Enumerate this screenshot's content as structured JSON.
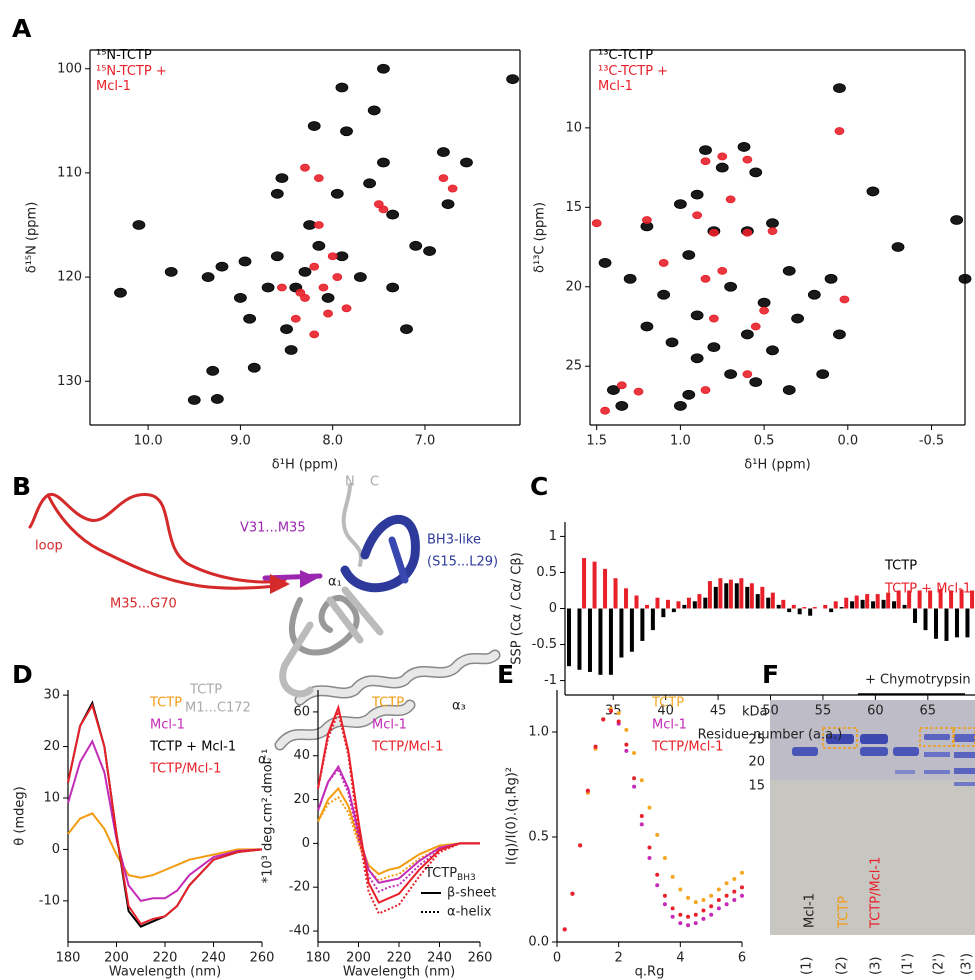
{
  "panel_labels": [
    "A",
    "B",
    "C",
    "D",
    "E",
    "F"
  ],
  "structure": {
    "loop": "loop",
    "v31": "V31...M35",
    "bh3": "BH3-like",
    "bh3_range": "(S15...L29)",
    "m35": "M35...G70",
    "tctp": "TCTP",
    "tctp_range": "M1...C172",
    "n": "N",
    "c": "C",
    "a1": "α₁",
    "a2": "α₂",
    "a3": "α₃"
  },
  "gel": {
    "treatment": "+ Chymotrypsin",
    "unit": "kDa",
    "markers": [
      "25",
      "20",
      "15"
    ],
    "samples": [
      "Mcl-1",
      "TCTP",
      "TCTP/Mcl-1"
    ],
    "lanes": [
      "(1)",
      "(2)",
      "(3)",
      "(1')",
      "(2')",
      "(3')"
    ]
  },
  "chart_data": [
    {
      "type": "scatter",
      "xlabel": "δ¹H (ppm)",
      "ylabel": "δ¹⁵N (ppm)",
      "xlim": [
        10.63,
        5.97
      ],
      "ylim": [
        134.2,
        98.2
      ],
      "xticks": [
        {
          "value": 10,
          "label": "10.0"
        },
        {
          "value": 9,
          "label": "9.0"
        },
        {
          "value": 8,
          "label": "8.0"
        },
        {
          "value": 7,
          "label": "7.0"
        }
      ],
      "yticks": [
        100,
        110,
        120,
        130
      ],
      "series": [
        {
          "name": "¹⁵N-TCTP",
          "color": "#000000",
          "x": [
            10.3,
            10.1,
            9.75,
            9.5,
            9.3,
            9.25,
            9.35,
            9.2,
            9.0,
            8.95,
            8.9,
            8.85,
            8.7,
            8.6,
            8.5,
            8.45,
            8.4,
            8.3,
            8.25,
            8.15,
            8.05,
            7.95,
            7.9,
            7.7,
            7.6,
            7.55,
            7.45,
            7.45,
            7.35,
            7.2,
            7.1,
            6.95,
            6.8,
            6.75,
            6.55,
            6.05,
            8.2,
            7.85,
            8.6,
            8.55,
            7.35,
            7.9
          ],
          "values": [
            121.5,
            115,
            119.5,
            131.8,
            129,
            131.7,
            120,
            119,
            122,
            118.5,
            124,
            128.7,
            121,
            118,
            125,
            127,
            121,
            119.5,
            115,
            117,
            122,
            112,
            118,
            120,
            111,
            104,
            100,
            109,
            121,
            125,
            117,
            117.5,
            108,
            113,
            109,
            101,
            105.5,
            106,
            112,
            110.5,
            114,
            101.8
          ]
        },
        {
          "name": "¹⁵N-TCTP + Mcl-1",
          "color": "#e8202a",
          "x": [
            8.3,
            8.15,
            8.2,
            8.1,
            8.05,
            8.15,
            7.95,
            8.3,
            8.0,
            8.4,
            7.85,
            7.5,
            7.45,
            6.8,
            6.7,
            8.35,
            8.2,
            8.55
          ],
          "values": [
            109.5,
            110.5,
            119,
            121,
            123.5,
            115,
            120,
            122,
            118,
            124,
            123,
            113,
            113.5,
            110.5,
            111.5,
            121.5,
            125.5,
            121
          ]
        }
      ]
    },
    {
      "type": "scatter",
      "xlabel": "δ¹H (ppm)",
      "ylabel": "δ¹³C (ppm)",
      "xlim": [
        1.54,
        -0.7
      ],
      "ylim": [
        28.7,
        5.1
      ],
      "xticks": [
        1.5,
        {
          "value": 1,
          "label": "1.0"
        },
        0.5,
        {
          "value": 0,
          "label": "0.0"
        },
        -0.5
      ],
      "yticks": [
        10,
        15,
        20,
        25
      ],
      "series": [
        {
          "name": "¹³C-TCTP",
          "color": "#000000",
          "x": [
            0.05,
            0.62,
            0.85,
            0.75,
            0.9,
            1.0,
            0.55,
            -0.15,
            -0.3,
            -0.65,
            -0.7,
            1.45,
            1.2,
            1.3,
            1.1,
            0.95,
            0.8,
            0.6,
            0.45,
            0.7,
            0.5,
            0.35,
            0.1,
            0.2,
            0.05,
            0.3,
            0.9,
            0.8,
            1.05,
            1.2,
            0.6,
            0.45,
            0.7,
            0.9,
            0.55,
            0.15,
            0.35,
            1.4,
            1.35,
            1.0,
            0.95
          ],
          "values": [
            7.5,
            11.2,
            11.4,
            12.5,
            14.2,
            14.8,
            12.8,
            14,
            17.5,
            15.8,
            19.5,
            18.5,
            16.2,
            19.5,
            20.5,
            18,
            16.5,
            16.5,
            16,
            20,
            21,
            19,
            19.5,
            20.5,
            23,
            22,
            21.8,
            23.8,
            23.5,
            22.5,
            23,
            24,
            25.5,
            24.5,
            26,
            25.5,
            26.5,
            26.5,
            27.5,
            27.5,
            26.8
          ]
        },
        {
          "name": "¹³C-TCTP + Mcl-1",
          "color": "#e8202a",
          "x": [
            0.85,
            0.75,
            0.6,
            0.7,
            0.9,
            0.45,
            0.6,
            0.8,
            1.1,
            1.2,
            0.85,
            0.5,
            0.55,
            0.75,
            0.8,
            0.6,
            1.35,
            1.25,
            0.85,
            0.02,
            0.05,
            1.5,
            1.45
          ],
          "values": [
            12.1,
            11.8,
            12,
            14.5,
            15.5,
            16.5,
            16.6,
            16.6,
            18.5,
            15.8,
            19.5,
            21.5,
            22.5,
            19,
            22,
            25.5,
            26.2,
            26.6,
            26.5,
            20.8,
            10.2,
            16,
            27.8
          ]
        }
      ]
    },
    {
      "type": "bar",
      "xlabel": "Residue number (a.a.)",
      "ylabel": "SSP (Cα / Cα/ Cβ)",
      "xlim": [
        30.4,
        69.5
      ],
      "ylim": [
        -1.2,
        1.2
      ],
      "xticks": [
        35,
        40,
        45,
        50,
        55,
        60,
        65
      ],
      "yticks": [
        1,
        0.5,
        0,
        -0.5,
        -1
      ],
      "x": [
        31,
        32,
        33,
        34,
        35,
        36,
        37,
        38,
        39,
        40,
        41,
        42,
        43,
        44,
        45,
        46,
        47,
        48,
        49,
        50,
        51,
        52,
        53,
        54,
        55,
        56,
        57,
        58,
        59,
        60,
        61,
        62,
        63,
        64,
        65,
        66,
        67,
        68,
        69
      ],
      "series": [
        {
          "name": "TCTP",
          "color": "#000000",
          "values": [
            -0.8,
            -0.85,
            -0.88,
            -0.92,
            -0.92,
            -0.68,
            -0.6,
            -0.45,
            -0.3,
            -0.12,
            -0.05,
            0.05,
            0.1,
            0.15,
            0.3,
            0.35,
            0.35,
            0.3,
            0.2,
            0.15,
            0.05,
            -0.05,
            -0.08,
            -0.1,
            null,
            -0.05,
            0.02,
            0.1,
            0.12,
            0.1,
            0.12,
            0.1,
            0.05,
            -0.2,
            -0.3,
            -0.42,
            -0.45,
            -0.4,
            -0.4
          ]
        },
        {
          "name": "TCTP + Mcl-1",
          "color": "#e8202a",
          "values": [
            null,
            0.7,
            0.65,
            0.55,
            0.42,
            0.28,
            0.18,
            0.05,
            0.15,
            0.12,
            0.1,
            0.15,
            0.2,
            0.38,
            0.42,
            0.4,
            0.42,
            0.35,
            0.3,
            0.22,
            0.12,
            0.05,
            0.02,
            0.02,
            0.05,
            0.1,
            0.15,
            0.18,
            0.2,
            0.2,
            0.22,
            0.25,
            0.25,
            0.25,
            0.25,
            0.27,
            0.25,
            0.26,
            0.25
          ]
        }
      ]
    },
    {
      "type": "line",
      "xlabel": "Wavelength (nm)",
      "ylabel": "θ (mdeg)",
      "xlim": [
        180,
        260
      ],
      "ylim": [
        -18,
        31
      ],
      "xticks": [
        180,
        200,
        220,
        240,
        260
      ],
      "yticks": [
        30,
        20,
        10,
        0,
        -10
      ],
      "x": [
        180,
        185,
        190,
        195,
        200,
        205,
        210,
        215,
        220,
        225,
        230,
        240,
        250,
        260
      ],
      "series": [
        {
          "name": "TCTP",
          "color": "#f39c12",
          "values": [
            3,
            6,
            7,
            4,
            -1,
            -5,
            -5.5,
            -5,
            -4,
            -3,
            -2,
            -1,
            0,
            0
          ]
        },
        {
          "name": "Mcl-1",
          "color": "#c42bb8",
          "values": [
            9,
            17,
            21,
            15,
            2,
            -7,
            -10,
            -9.5,
            -9.5,
            -8,
            -5,
            -1.5,
            -0.3,
            0
          ]
        },
        {
          "name": "TCTP + Mcl-1",
          "color": "#000000",
          "values": [
            13,
            24,
            28.5,
            20,
            3,
            -12,
            -15,
            -14,
            -13,
            -11,
            -7,
            -2,
            -0.5,
            0
          ]
        },
        {
          "name": "TCTP/Mcl-1",
          "color": "#e8202a",
          "values": [
            13,
            24,
            28,
            20,
            3,
            -11,
            -14.5,
            -13.5,
            -13,
            -11,
            -7,
            -2,
            -0.5,
            0
          ]
        }
      ]
    },
    {
      "type": "line-pair",
      "xlabel": "Wavelength (nm)",
      "ylabel": "*10³ deg.cm².dmol⁻¹",
      "xlim": [
        180,
        260
      ],
      "ylim": [
        -45,
        70
      ],
      "xticks": [
        180,
        200,
        220,
        240,
        260
      ],
      "yticks": [
        60,
        40,
        20,
        0,
        -20,
        -40
      ],
      "style_legend": {
        "title": "TCTP",
        "title_sub": "BH3",
        "beta": "β-sheet",
        "helix": "α-helix"
      },
      "x": [
        180,
        185,
        190,
        195,
        200,
        205,
        210,
        215,
        220,
        230,
        240,
        250,
        260
      ],
      "series": [
        {
          "name": "TCTP",
          "color": "#f39c12",
          "beta": [
            10,
            20,
            25,
            17,
            2,
            -10,
            -14,
            -12,
            -11,
            -5,
            -1,
            0,
            0
          ],
          "helix": [
            10,
            18,
            21,
            14,
            0,
            -12,
            -17,
            -15,
            -14,
            -7,
            -2,
            0,
            0
          ]
        },
        {
          "name": "Mcl-1",
          "color": "#c42bb8",
          "beta": [
            15,
            28,
            35,
            25,
            5,
            -12,
            -18,
            -17,
            -16,
            -8,
            -2,
            0,
            0
          ],
          "helix": [
            15,
            28,
            34,
            23,
            2,
            -15,
            -22,
            -20,
            -19,
            -10,
            -3,
            0,
            0
          ]
        },
        {
          "name": "TCTP/Mcl-1",
          "color": "#e8202a",
          "beta": [
            25,
            50,
            62,
            42,
            10,
            -18,
            -27,
            -25,
            -23,
            -12,
            -3,
            0,
            0
          ],
          "helix": [
            25,
            48,
            60,
            40,
            5,
            -22,
            -32,
            -30,
            -28,
            -15,
            -4,
            0,
            0
          ]
        }
      ]
    },
    {
      "type": "dots",
      "xlabel": "q.Rg",
      "ylabel": "I(q)/I(0).(q.Rg)²",
      "xlim": [
        0,
        6
      ],
      "ylim": [
        0,
        1.2
      ],
      "xticks": [
        0,
        2,
        4,
        6
      ],
      "yticks": [
        {
          "value": 0,
          "label": "0.0"
        },
        0.5,
        {
          "value": 1,
          "label": "1.0"
        }
      ],
      "x": [
        0.25,
        0.5,
        0.75,
        1,
        1.25,
        1.5,
        1.75,
        2,
        2.25,
        2.5,
        2.75,
        3,
        3.25,
        3.5,
        3.75,
        4,
        4.25,
        4.5,
        4.75,
        5,
        5.25,
        5.5,
        5.75,
        6
      ],
      "series": [
        {
          "name": "TCTP",
          "color": "#f5a623",
          "values": [
            0.06,
            0.23,
            0.46,
            0.71,
            0.92,
            1.06,
            1.11,
            1.09,
            1.01,
            0.9,
            0.77,
            0.64,
            0.51,
            0.4,
            0.31,
            0.25,
            0.21,
            0.19,
            0.2,
            0.22,
            0.25,
            0.28,
            0.3,
            0.33
          ]
        },
        {
          "name": "Mcl-1",
          "color": "#c42bb8",
          "values": [
            0.06,
            0.23,
            0.46,
            0.72,
            0.93,
            1.06,
            1.1,
            1.04,
            0.91,
            0.74,
            0.56,
            0.4,
            0.27,
            0.18,
            0.12,
            0.09,
            0.08,
            0.09,
            0.11,
            0.13,
            0.16,
            0.18,
            0.2,
            0.22
          ]
        },
        {
          "name": "TCTP/Mcl-1",
          "color": "#e8202a",
          "values": [
            0.06,
            0.23,
            0.46,
            0.72,
            0.93,
            1.06,
            1.1,
            1.05,
            0.94,
            0.78,
            0.6,
            0.45,
            0.32,
            0.22,
            0.16,
            0.13,
            0.12,
            0.13,
            0.15,
            0.17,
            0.2,
            0.22,
            0.24,
            0.26
          ]
        }
      ]
    }
  ]
}
